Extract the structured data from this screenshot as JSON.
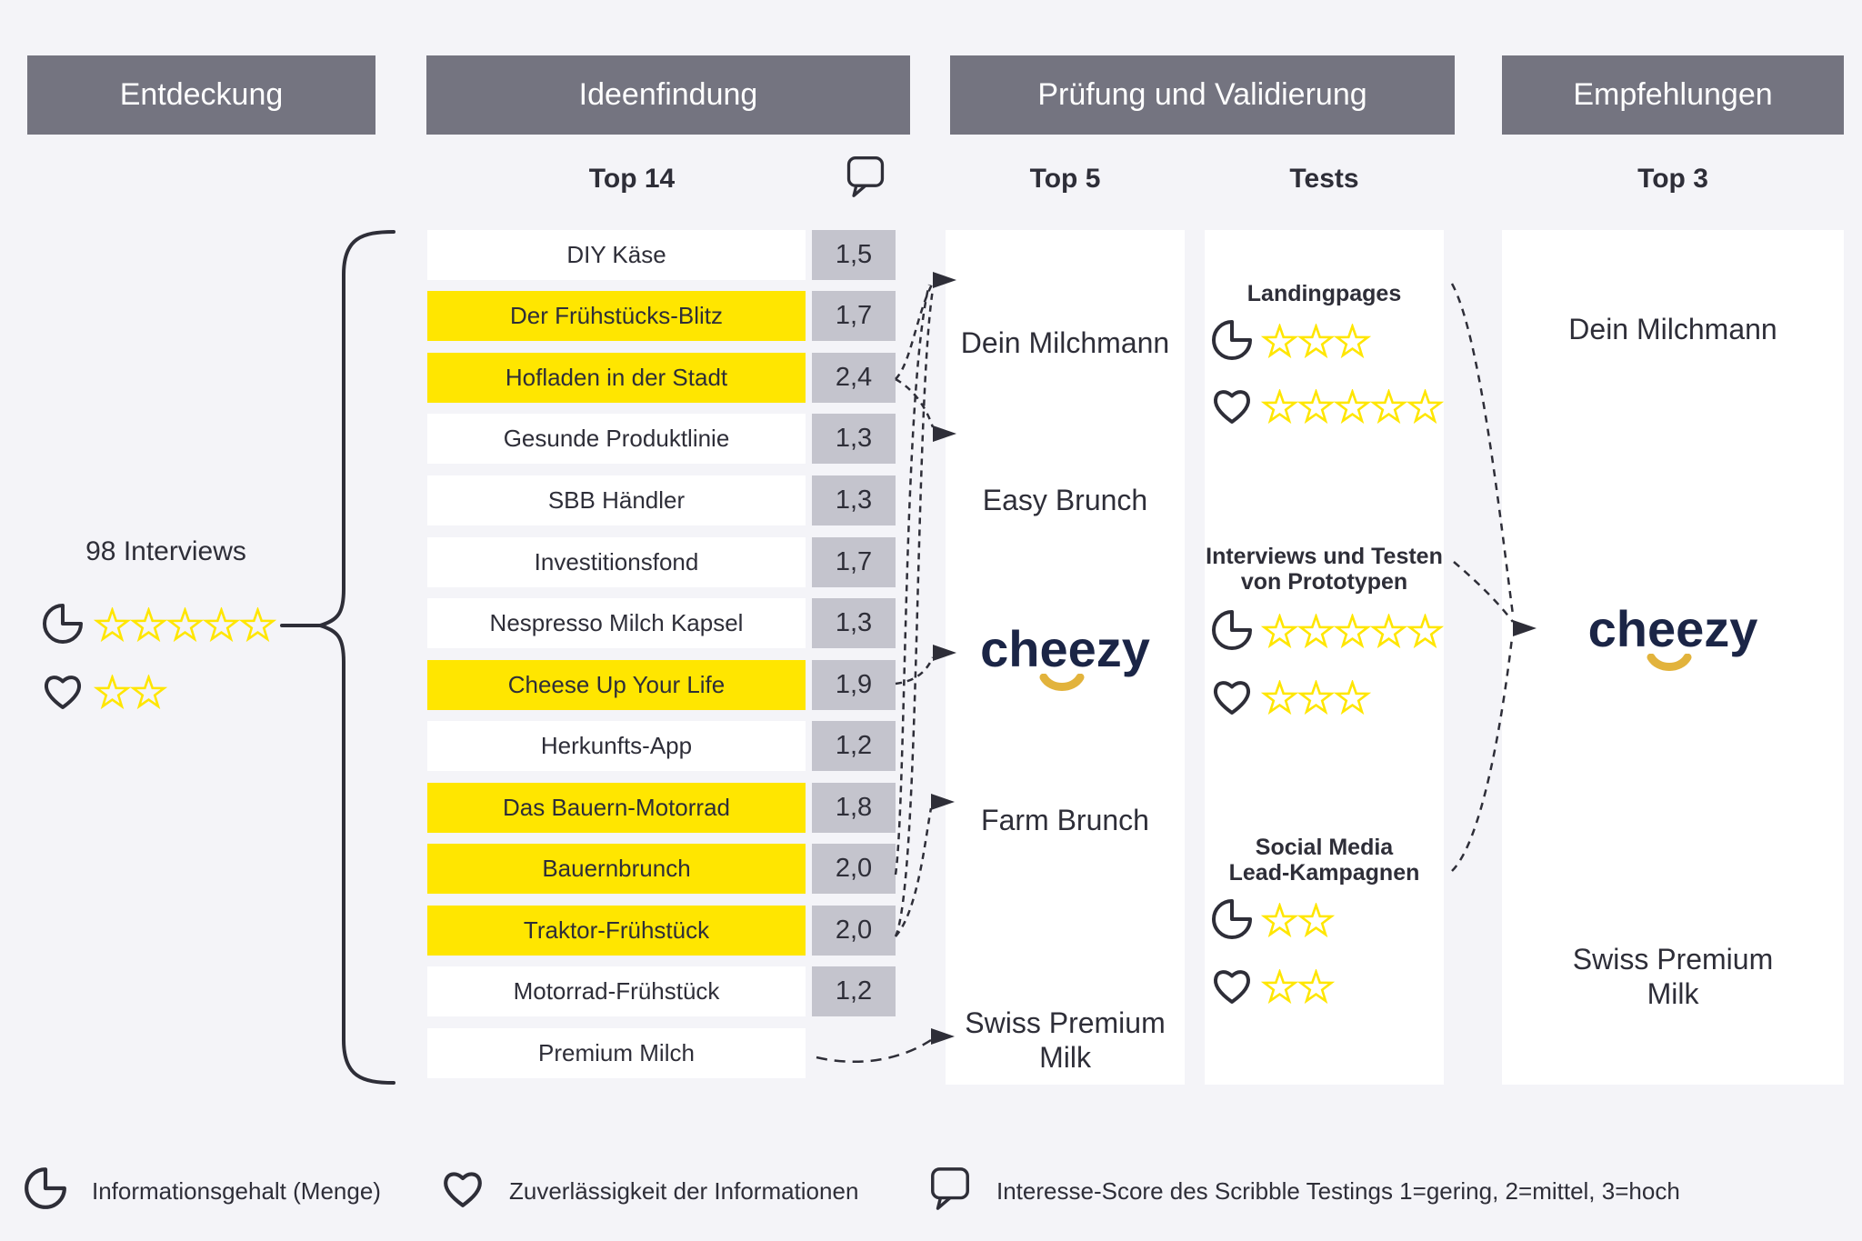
{
  "stages": [
    {
      "label": "Entdeckung"
    },
    {
      "label": "Ideenfindung"
    },
    {
      "label": "Prüfung und Validierung"
    },
    {
      "label": "Empfehlungen"
    }
  ],
  "col_labels": {
    "ideas": "Top 14",
    "top5": "Top 5",
    "tests": "Tests",
    "top3": "Top 3"
  },
  "discovery": {
    "title": "98 Interviews",
    "ratings": [
      {
        "icon": "pie",
        "stars": 5
      },
      {
        "icon": "heart",
        "stars": 2
      }
    ]
  },
  "ideas": [
    {
      "label": "DIY Käse",
      "score": "1,5",
      "highlight": false
    },
    {
      "label": "Der Frühstücks-Blitz",
      "score": "1,7",
      "highlight": true
    },
    {
      "label": "Hofladen in der Stadt",
      "score": "2,4",
      "highlight": true
    },
    {
      "label": "Gesunde Produktlinie",
      "score": "1,3",
      "highlight": false
    },
    {
      "label": "SBB Händler",
      "score": "1,3",
      "highlight": false
    },
    {
      "label": "Investitionsfond",
      "score": "1,7",
      "highlight": false
    },
    {
      "label": "Nespresso Milch Kapsel",
      "score": "1,3",
      "highlight": false
    },
    {
      "label": "Cheese Up Your Life",
      "score": "1,9",
      "highlight": true
    },
    {
      "label": "Herkunfts-App",
      "score": "1,2",
      "highlight": false
    },
    {
      "label": "Das Bauern-Motorrad",
      "score": "1,8",
      "highlight": true
    },
    {
      "label": "Bauernbrunch",
      "score": "2,0",
      "highlight": true
    },
    {
      "label": "Traktor-Frühstück",
      "score": "2,0",
      "highlight": true
    },
    {
      "label": "Motorrad-Frühstück",
      "score": "1,2",
      "highlight": false
    },
    {
      "label": "Premium Milch",
      "score": null,
      "highlight": false
    }
  ],
  "brand": {
    "name": "cheezy"
  },
  "top5": [
    {
      "label": "Dein Milchmann"
    },
    {
      "label": "Easy Brunch"
    },
    {
      "logo": true
    },
    {
      "label": "Farm Brunch"
    },
    {
      "label": "Swiss Premium Milk",
      "lines": [
        "Swiss Premium",
        "Milk"
      ]
    }
  ],
  "tests": [
    {
      "title_lines": [
        "Landingpages"
      ],
      "ratings": [
        {
          "icon": "pie",
          "stars": 3
        },
        {
          "icon": "heart",
          "stars": 5
        }
      ]
    },
    {
      "title_lines": [
        "Interviews und Testen",
        "von Prototypen"
      ],
      "ratings": [
        {
          "icon": "pie",
          "stars": 5
        },
        {
          "icon": "heart",
          "stars": 3
        }
      ]
    },
    {
      "title_lines": [
        "Social Media",
        "Lead-Kampagnen"
      ],
      "ratings": [
        {
          "icon": "pie",
          "stars": 2
        },
        {
          "icon": "heart",
          "stars": 2
        }
      ]
    }
  ],
  "top3": [
    {
      "label": "Dein Milchmann"
    },
    {
      "logo": true
    },
    {
      "label": "Swiss Premium Milk",
      "lines": [
        "Swiss Premium",
        "Milk"
      ]
    }
  ],
  "legend": [
    {
      "icon": "pie",
      "label": "Informationsgehalt (Menge)"
    },
    {
      "icon": "heart",
      "label": "Zuverlässigkeit der Informationen"
    },
    {
      "icon": "bubble",
      "label": "Interesse-Score des Scribble Testings 1=gering, 2=mittel, 3=hoch"
    }
  ],
  "colors": {
    "background": "#f4f4f8",
    "header_gray": "#747480",
    "highlight_yellow": "#ffe600",
    "score_gray": "#c4c4cd",
    "text_dark": "#2e2e38",
    "star_yellow": "#ffe600",
    "logo_navy": "#1b2546",
    "logo_smile_gold": "#e2b33c",
    "panel_white": "#ffffff"
  }
}
